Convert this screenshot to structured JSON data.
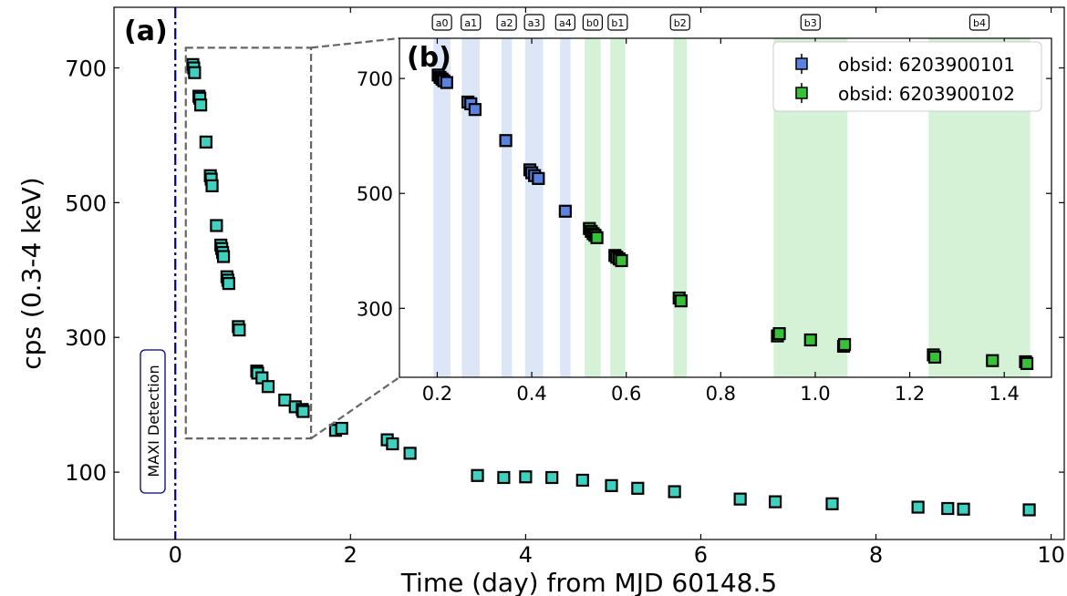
{
  "chart_data": [
    {
      "type": "scatter",
      "panel_label": "(a)",
      "xlabel": "Time (day) from MJD 60148.5",
      "ylabel": "cps (0.3-4 keV)",
      "xlim": [
        -0.7,
        10.15
      ],
      "ylim": [
        0,
        790
      ],
      "x_ticks": [
        0,
        2,
        4,
        6,
        8,
        10
      ],
      "y_ticks": [
        100,
        300,
        500,
        700
      ],
      "marker": "square",
      "marker_color": "#40d0c0",
      "detection_line": {
        "x": 0,
        "label": "MAXI Detection",
        "color": "#000080"
      },
      "zoom_box": {
        "x": [
          0.12,
          1.55
        ],
        "y": [
          150,
          730
        ]
      },
      "points": [
        {
          "x": 0.2,
          "y": 705
        },
        {
          "x": 0.21,
          "y": 700
        },
        {
          "x": 0.22,
          "y": 693
        },
        {
          "x": 0.27,
          "y": 658
        },
        {
          "x": 0.28,
          "y": 655
        },
        {
          "x": 0.29,
          "y": 645
        },
        {
          "x": 0.35,
          "y": 590
        },
        {
          "x": 0.4,
          "y": 540
        },
        {
          "x": 0.41,
          "y": 535
        },
        {
          "x": 0.42,
          "y": 525
        },
        {
          "x": 0.47,
          "y": 466
        },
        {
          "x": 0.52,
          "y": 437
        },
        {
          "x": 0.53,
          "y": 432
        },
        {
          "x": 0.54,
          "y": 426
        },
        {
          "x": 0.55,
          "y": 420
        },
        {
          "x": 0.59,
          "y": 390
        },
        {
          "x": 0.6,
          "y": 385
        },
        {
          "x": 0.61,
          "y": 380
        },
        {
          "x": 0.72,
          "y": 316
        },
        {
          "x": 0.73,
          "y": 311
        },
        {
          "x": 0.93,
          "y": 250
        },
        {
          "x": 0.94,
          "y": 247
        },
        {
          "x": 0.99,
          "y": 240
        },
        {
          "x": 1.06,
          "y": 227
        },
        {
          "x": 1.25,
          "y": 207
        },
        {
          "x": 1.37,
          "y": 197
        },
        {
          "x": 1.45,
          "y": 193
        },
        {
          "x": 1.46,
          "y": 190
        },
        {
          "x": 1.83,
          "y": 162
        },
        {
          "x": 1.9,
          "y": 165
        },
        {
          "x": 2.42,
          "y": 148
        },
        {
          "x": 2.48,
          "y": 142
        },
        {
          "x": 2.68,
          "y": 128
        },
        {
          "x": 3.45,
          "y": 95
        },
        {
          "x": 3.75,
          "y": 92
        },
        {
          "x": 4.0,
          "y": 93
        },
        {
          "x": 4.3,
          "y": 92
        },
        {
          "x": 4.65,
          "y": 88
        },
        {
          "x": 4.98,
          "y": 80
        },
        {
          "x": 5.28,
          "y": 76
        },
        {
          "x": 5.7,
          "y": 71
        },
        {
          "x": 6.45,
          "y": 60
        },
        {
          "x": 6.85,
          "y": 56
        },
        {
          "x": 7.5,
          "y": 53
        },
        {
          "x": 8.48,
          "y": 48
        },
        {
          "x": 8.82,
          "y": 46
        },
        {
          "x": 9.0,
          "y": 45
        },
        {
          "x": 9.75,
          "y": 44
        }
      ]
    },
    {
      "type": "scatter",
      "panel_label": "(b)",
      "xlim": [
        0.12,
        1.5
      ],
      "ylim": [
        180,
        770
      ],
      "x_ticks": [
        0.2,
        0.4,
        0.6,
        0.8,
        1.0,
        1.2,
        1.4
      ],
      "x_tick_labels": [
        "0.2",
        "0.4",
        "0.6",
        "0.8",
        "1.0",
        "1.2",
        "1.4"
      ],
      "y_ticks": [
        300,
        500,
        700
      ],
      "legend_position": "top-right",
      "bands": [
        {
          "label": "a0",
          "x": [
            0.192,
            0.228
          ],
          "color": "#dce6f7"
        },
        {
          "label": "a1",
          "x": [
            0.252,
            0.29
          ],
          "color": "#dce6f7"
        },
        {
          "label": "a2",
          "x": [
            0.336,
            0.358
          ],
          "color": "#dce6f7"
        },
        {
          "label": "a3",
          "x": [
            0.386,
            0.424
          ],
          "color": "#dce6f7"
        },
        {
          "label": "a4",
          "x": [
            0.46,
            0.482
          ],
          "color": "#dce6f7"
        },
        {
          "label": "b0",
          "x": [
            0.512,
            0.546
          ],
          "color": "#d6f2d6"
        },
        {
          "label": "b1",
          "x": [
            0.566,
            0.598
          ],
          "color": "#d6f2d6"
        },
        {
          "label": "b2",
          "x": [
            0.7,
            0.728
          ],
          "color": "#d6f2d6"
        },
        {
          "label": "b3",
          "x": [
            0.912,
            1.068
          ],
          "color": "#d6f2d6"
        },
        {
          "label": "b4",
          "x": [
            1.24,
            1.455
          ],
          "color": "#d6f2d6"
        }
      ],
      "series": [
        {
          "name": "obsid: 6203900101",
          "color": "#5b82dc",
          "points": [
            {
              "x": 0.202,
              "y": 706
            },
            {
              "x": 0.206,
              "y": 702
            },
            {
              "x": 0.21,
              "y": 699
            },
            {
              "x": 0.214,
              "y": 696
            },
            {
              "x": 0.22,
              "y": 693
            },
            {
              "x": 0.265,
              "y": 659
            },
            {
              "x": 0.271,
              "y": 656
            },
            {
              "x": 0.28,
              "y": 646
            },
            {
              "x": 0.345,
              "y": 592
            },
            {
              "x": 0.396,
              "y": 541
            },
            {
              "x": 0.4,
              "y": 536
            },
            {
              "x": 0.406,
              "y": 531
            },
            {
              "x": 0.414,
              "y": 526
            },
            {
              "x": 0.471,
              "y": 469
            }
          ]
        },
        {
          "name": "obsid: 6203900102",
          "color": "#38c038",
          "points": [
            {
              "x": 0.522,
              "y": 439
            },
            {
              "x": 0.526,
              "y": 434
            },
            {
              "x": 0.53,
              "y": 430
            },
            {
              "x": 0.534,
              "y": 427
            },
            {
              "x": 0.538,
              "y": 423
            },
            {
              "x": 0.576,
              "y": 392
            },
            {
              "x": 0.58,
              "y": 389
            },
            {
              "x": 0.585,
              "y": 386
            },
            {
              "x": 0.59,
              "y": 383
            },
            {
              "x": 0.712,
              "y": 318
            },
            {
              "x": 0.716,
              "y": 313
            },
            {
              "x": 0.92,
              "y": 252
            },
            {
              "x": 0.924,
              "y": 256
            },
            {
              "x": 0.99,
              "y": 245
            },
            {
              "x": 1.06,
              "y": 234
            },
            {
              "x": 1.062,
              "y": 237
            },
            {
              "x": 1.25,
              "y": 219
            },
            {
              "x": 1.253,
              "y": 215
            },
            {
              "x": 1.375,
              "y": 209
            },
            {
              "x": 1.445,
              "y": 207
            },
            {
              "x": 1.448,
              "y": 204
            }
          ]
        }
      ]
    }
  ]
}
